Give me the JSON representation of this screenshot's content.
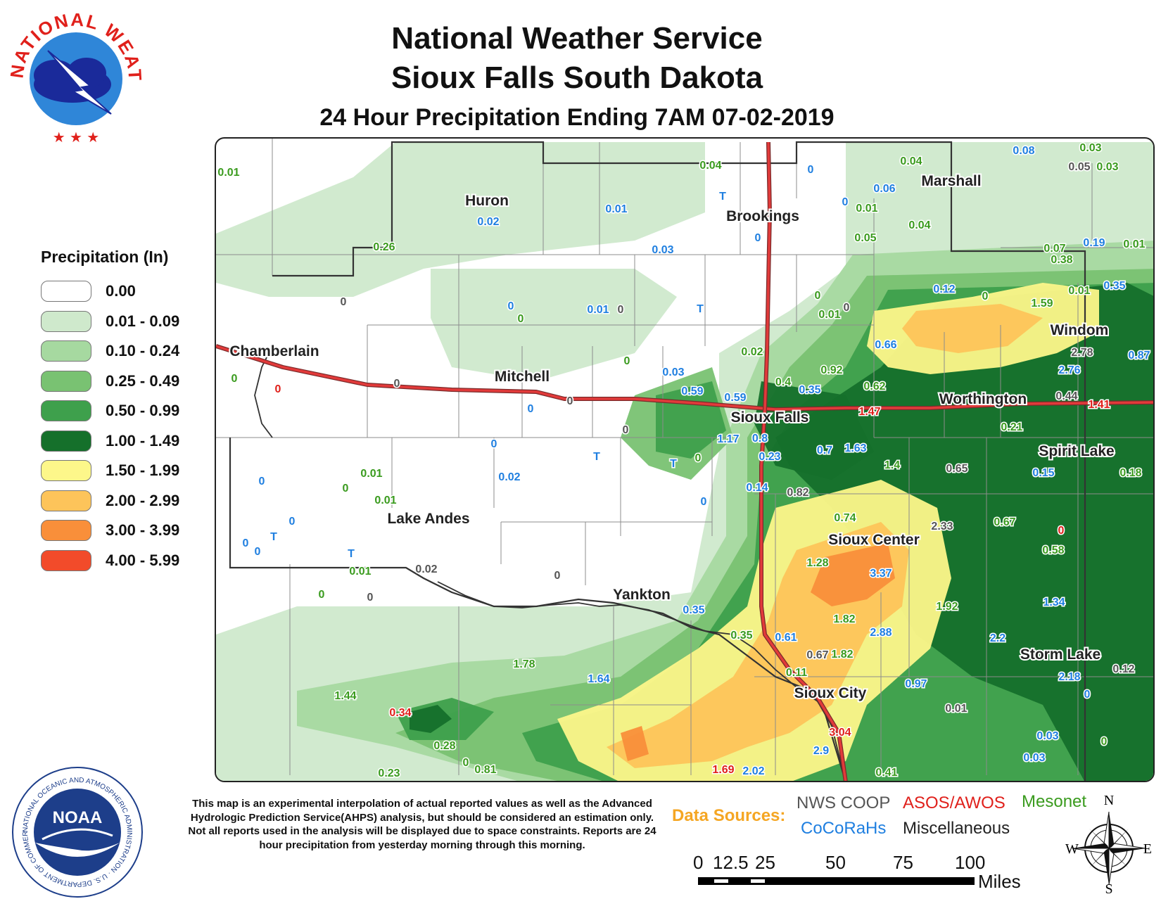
{
  "header": {
    "line1": "National Weather Service",
    "line2": "Sioux Falls South Dakota",
    "line3": "24 Hour Precipitation Ending 7AM 07-02-2019"
  },
  "logos": {
    "nws_text": "NATIONAL WEATHER SERVICE",
    "noaa_text": "NOAA",
    "noaa_ring_text": "NATIONAL OCEANIC AND ATMOSPHERIC ADMINISTRATION · U.S. DEPARTMENT OF COMMERCE"
  },
  "legend": {
    "title": "Precipitation (In)",
    "items": [
      {
        "label": "0.00",
        "color": "#ffffff"
      },
      {
        "label": "0.01 - 0.09",
        "color": "#cfe9cc"
      },
      {
        "label": "0.10 - 0.24",
        "color": "#a6d9a0"
      },
      {
        "label": "0.25 - 0.49",
        "color": "#79c272"
      },
      {
        "label": "0.50 - 0.99",
        "color": "#3ea04c"
      },
      {
        "label": "1.00 - 1.49",
        "color": "#15702b"
      },
      {
        "label": "1.50 - 1.99",
        "color": "#fdf78a"
      },
      {
        "label": "2.00 - 2.99",
        "color": "#fdc45a"
      },
      {
        "label": "3.00 - 3.99",
        "color": "#f98f3a"
      },
      {
        "label": "4.00 - 5.99",
        "color": "#f24b2a"
      }
    ]
  },
  "source_colors": {
    "nws_coop": "#555555",
    "asos_awos": "#e0201b",
    "mesonet": "#3a9b1e",
    "cocorahs": "#1f7fe0",
    "misc": "#222222"
  },
  "cities": [
    {
      "name": "Huron"
    },
    {
      "name": "Brookings"
    },
    {
      "name": "Marshall"
    },
    {
      "name": "Chamberlain"
    },
    {
      "name": "Mitchell"
    },
    {
      "name": "Windom"
    },
    {
      "name": "Worthington"
    },
    {
      "name": "Sioux Falls"
    },
    {
      "name": "Spirit Lake"
    },
    {
      "name": "Lake Andes"
    },
    {
      "name": "Sioux Center"
    },
    {
      "name": "Yankton"
    },
    {
      "name": "Storm Lake"
    },
    {
      "name": "Sioux City"
    }
  ],
  "observations": [
    {
      "value": "0.01",
      "source": "mesonet"
    },
    {
      "value": "0.04",
      "source": "mesonet"
    },
    {
      "value": "0.04",
      "source": "mesonet"
    },
    {
      "value": "0.08",
      "source": "cocorahs"
    },
    {
      "value": "0.03",
      "source": "mesonet"
    },
    {
      "value": "0.05",
      "source": "nws_coop"
    },
    {
      "value": "0.03",
      "source": "mesonet"
    },
    {
      "value": "0",
      "source": "cocorahs"
    },
    {
      "value": "T",
      "source": "cocorahs"
    },
    {
      "value": "0.06",
      "source": "cocorahs"
    },
    {
      "value": "0",
      "source": "cocorahs"
    },
    {
      "value": "0.01",
      "source": "mesonet"
    },
    {
      "value": "0.02",
      "source": "cocorahs"
    },
    {
      "value": "0.01",
      "source": "cocorahs"
    },
    {
      "value": "0",
      "source": "cocorahs"
    },
    {
      "value": "0.04",
      "source": "mesonet"
    },
    {
      "value": "0.05",
      "source": "mesonet"
    },
    {
      "value": "0.26",
      "source": "mesonet"
    },
    {
      "value": "0.03",
      "source": "cocorahs"
    },
    {
      "value": "0.07",
      "source": "mesonet"
    },
    {
      "value": "0.19",
      "source": "cocorahs"
    },
    {
      "value": "0.01",
      "source": "mesonet"
    },
    {
      "value": "0.38",
      "source": "mesonet"
    },
    {
      "value": "0.12",
      "source": "cocorahs"
    },
    {
      "value": "0",
      "source": "mesonet"
    },
    {
      "value": "1.59",
      "source": "mesonet"
    },
    {
      "value": "0.01",
      "source": "mesonet"
    },
    {
      "value": "0.35",
      "source": "cocorahs"
    },
    {
      "value": "0",
      "source": "nws_coop"
    },
    {
      "value": "0",
      "source": "cocorahs"
    },
    {
      "value": "0",
      "source": "mesonet"
    },
    {
      "value": "0.01",
      "source": "cocorahs"
    },
    {
      "value": "0",
      "source": "nws_coop"
    },
    {
      "value": "T",
      "source": "cocorahs"
    },
    {
      "value": "0",
      "source": "mesonet"
    },
    {
      "value": "0.01",
      "source": "mesonet"
    },
    {
      "value": "0",
      "source": "nws_coop"
    },
    {
      "value": "2.78",
      "source": "nws_coop"
    },
    {
      "value": "0.87",
      "source": "cocorahs"
    },
    {
      "value": "0.66",
      "source": "cocorahs"
    },
    {
      "value": "2.76",
      "source": "cocorahs"
    },
    {
      "value": "0.02",
      "source": "mesonet"
    },
    {
      "value": "0.92",
      "source": "mesonet"
    },
    {
      "value": "0",
      "source": "mesonet"
    },
    {
      "value": "0",
      "source": "mesonet"
    },
    {
      "value": "0",
      "source": "asos_awos"
    },
    {
      "value": "0",
      "source": "nws_coop"
    },
    {
      "value": "0.03",
      "source": "cocorahs"
    },
    {
      "value": "0.4",
      "source": "mesonet"
    },
    {
      "value": "0.35",
      "source": "cocorahs"
    },
    {
      "value": "0.62",
      "source": "mesonet"
    },
    {
      "value": "0.44",
      "source": "nws_coop"
    },
    {
      "value": "0.59",
      "source": "cocorahs"
    },
    {
      "value": "0.59",
      "source": "cocorahs"
    },
    {
      "value": "0",
      "source": "nws_coop"
    },
    {
      "value": "1.47",
      "source": "asos_awos"
    },
    {
      "value": "1.41",
      "source": "asos_awos"
    },
    {
      "value": "0",
      "source": "cocorahs"
    },
    {
      "value": "0.21",
      "source": "mesonet"
    },
    {
      "value": "0",
      "source": "nws_coop"
    },
    {
      "value": "1.17",
      "source": "cocorahs"
    },
    {
      "value": "0.8",
      "source": "cocorahs"
    },
    {
      "value": "0",
      "source": "cocorahs"
    },
    {
      "value": "T",
      "source": "cocorahs"
    },
    {
      "value": "T",
      "source": "cocorahs"
    },
    {
      "value": "0",
      "source": "mesonet"
    },
    {
      "value": "0.23",
      "source": "cocorahs"
    },
    {
      "value": "0.7",
      "source": "cocorahs"
    },
    {
      "value": "1.63",
      "source": "cocorahs"
    },
    {
      "value": "1.4",
      "source": "mesonet"
    },
    {
      "value": "0.65",
      "source": "nws_coop"
    },
    {
      "value": "0.15",
      "source": "cocorahs"
    },
    {
      "value": "0.18",
      "source": "mesonet"
    },
    {
      "value": "0.01",
      "source": "mesonet"
    },
    {
      "value": "0",
      "source": "mesonet"
    },
    {
      "value": "0.01",
      "source": "mesonet"
    },
    {
      "value": "0",
      "source": "cocorahs"
    },
    {
      "value": "0.02",
      "source": "cocorahs"
    },
    {
      "value": "0.14",
      "source": "cocorahs"
    },
    {
      "value": "0.82",
      "source": "nws_coop"
    },
    {
      "value": "0",
      "source": "cocorahs"
    },
    {
      "value": "0",
      "source": "cocorahs"
    },
    {
      "value": "0.74",
      "source": "mesonet"
    },
    {
      "value": "0.67",
      "source": "mesonet"
    },
    {
      "value": "0",
      "source": "cocorahs"
    },
    {
      "value": "T",
      "source": "cocorahs"
    },
    {
      "value": "0",
      "source": "cocorahs"
    },
    {
      "value": "2.33",
      "source": "nws_coop"
    },
    {
      "value": "0",
      "source": "asos_awos"
    },
    {
      "value": "0.58",
      "source": "mesonet"
    },
    {
      "value": "T",
      "source": "cocorahs"
    },
    {
      "value": "1.28",
      "source": "mesonet"
    },
    {
      "value": "0.01",
      "source": "mesonet"
    },
    {
      "value": "0.02",
      "source": "nws_coop"
    },
    {
      "value": "0",
      "source": "nws_coop"
    },
    {
      "value": "3.37",
      "source": "cocorahs"
    },
    {
      "value": "0",
      "source": "mesonet"
    },
    {
      "value": "0",
      "source": "nws_coop"
    },
    {
      "value": "0.35",
      "source": "cocorahs"
    },
    {
      "value": "1.82",
      "source": "mesonet"
    },
    {
      "value": "1.92",
      "source": "mesonet"
    },
    {
      "value": "1.34",
      "source": "cocorahs"
    },
    {
      "value": "0.35",
      "source": "mesonet"
    },
    {
      "value": "0.61",
      "source": "cocorahs"
    },
    {
      "value": "2.88",
      "source": "cocorahs"
    },
    {
      "value": "2.2",
      "source": "cocorahs"
    },
    {
      "value": "0.67",
      "source": "nws_coop"
    },
    {
      "value": "1.82",
      "source": "mesonet"
    },
    {
      "value": "1.78",
      "source": "mesonet"
    },
    {
      "value": "0.11",
      "source": "mesonet"
    },
    {
      "value": "1.64",
      "source": "cocorahs"
    },
    {
      "value": "0.97",
      "source": "cocorahs"
    },
    {
      "value": "2.18",
      "source": "cocorahs"
    },
    {
      "value": "0.12",
      "source": "nws_coop"
    },
    {
      "value": "0",
      "source": "cocorahs"
    },
    {
      "value": "0.01",
      "source": "nws_coop"
    },
    {
      "value": "1.44",
      "source": "mesonet"
    },
    {
      "value": "0.34",
      "source": "asos_awos"
    },
    {
      "value": "3.04",
      "source": "asos_awos"
    },
    {
      "value": "0.03",
      "source": "cocorahs"
    },
    {
      "value": "0",
      "source": "mesonet"
    },
    {
      "value": "0.28",
      "source": "mesonet"
    },
    {
      "value": "2.9",
      "source": "cocorahs"
    },
    {
      "value": "0.03",
      "source": "cocorahs"
    },
    {
      "value": "0",
      "source": "mesonet"
    },
    {
      "value": "0.81",
      "source": "mesonet"
    },
    {
      "value": "0.23",
      "source": "mesonet"
    },
    {
      "value": "1.69",
      "source": "asos_awos"
    },
    {
      "value": "2.02",
      "source": "cocorahs"
    },
    {
      "value": "0.41",
      "source": "mesonet"
    }
  ],
  "disclaimer": "This map is an experimental interpolation of actual reported values as well as the Advanced Hydrologic Prediction Service(AHPS) analysis, but should be considered an estimation only. Not all reports used in the analysis will be displayed due to space constraints. Reports are 24 hour precipitation from yesterday morning through this morning.",
  "data_sources": {
    "label": "Data Sources:",
    "nws_coop": "NWS COOP",
    "asos_awos": "ASOS/AWOS",
    "mesonet": "Mesonet",
    "cocorahs": "CoCoRaHs",
    "misc": "Miscellaneous"
  },
  "scale": {
    "ticks": [
      "0",
      "12.5",
      "25",
      "50",
      "75",
      "100"
    ],
    "unit": "Miles"
  },
  "compass": {
    "n": "N",
    "s": "S",
    "e": "E",
    "w": "W"
  }
}
